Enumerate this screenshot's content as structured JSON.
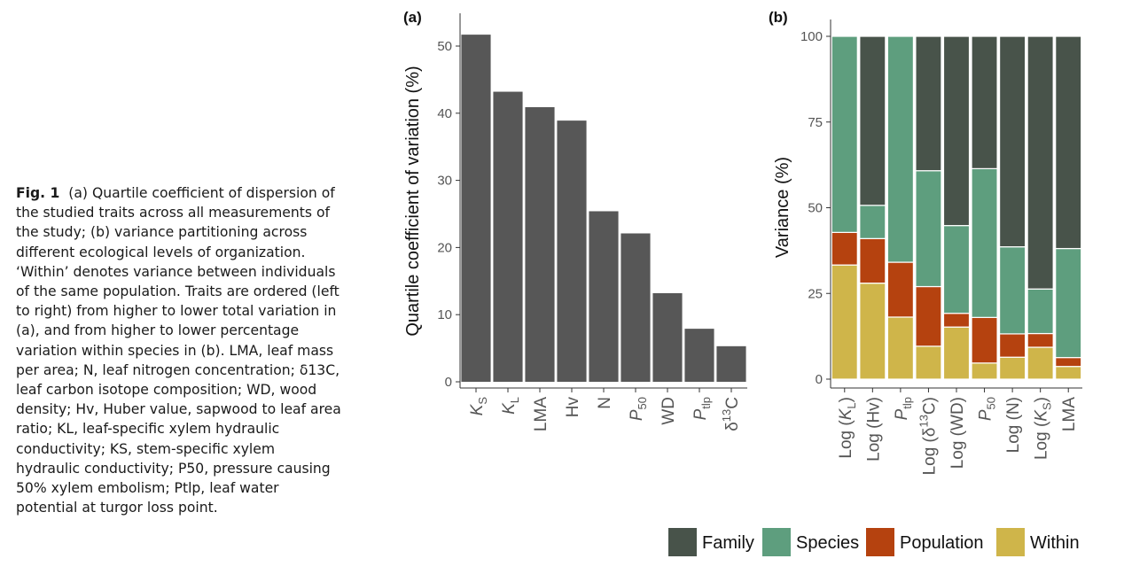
{
  "caption": {
    "label": "Fig. 1",
    "text": "(a) Quartile coefficient of dispersion of the studied traits across all measurements of the study; (b) variance partitioning across different ecological levels of organization. ‘Within’ denotes variance between individuals of the same population. Traits are ordered (left to right) from higher to lower total variation in (a), and from higher to lower percentage variation within species in (b). LMA, leaf mass per area; N, leaf nitrogen concentration; δ13C, leaf carbon isotope composition; WD, wood density; Hv, Huber value, sapwood to leaf area ratio; KL, leaf-specific xylem hydraulic conductivity; KS, stem-specific xylem hydraulic conductivity; P50, pressure causing 50% xylem embolism; Ptlp, leaf water potential at turgor loss point."
  },
  "chart_data": [
    {
      "type": "bar",
      "panel_label": "(a)",
      "ylabel": "Quartile coefficient of variation (%)",
      "ylim": [
        0,
        55
      ],
      "yticks": [
        0,
        10,
        20,
        30,
        40,
        50
      ],
      "categories": [
        "KS",
        "KL",
        "LMA",
        "Hv",
        "N",
        "P50",
        "WD",
        "Ptlp",
        "δ13C"
      ],
      "values": [
        51.7,
        43.2,
        40.9,
        38.9,
        25.4,
        22.1,
        13.2,
        7.9,
        5.3
      ],
      "bar_color": "#575757",
      "grid": false
    },
    {
      "type": "bar",
      "stacked": true,
      "panel_label": "(b)",
      "ylabel": "Variance (%)",
      "ylim": [
        0,
        100
      ],
      "yticks": [
        0,
        25,
        50,
        75,
        100
      ],
      "categories": [
        "Log (KL)",
        "Log (Hv)",
        "Ptlp",
        "Log (δ13C)",
        "Log (WD)",
        "P50",
        "Log (N)",
        "Log (KS)",
        "LMA"
      ],
      "series": [
        {
          "name": "Within",
          "color": "#cfb54a",
          "values": [
            33.3,
            28.0,
            18.1,
            9.6,
            15.2,
            4.7,
            6.4,
            9.3,
            3.7
          ]
        },
        {
          "name": "Population",
          "color": "#b5420f",
          "values": [
            9.5,
            13.0,
            16.0,
            17.4,
            4.0,
            13.3,
            6.8,
            4.0,
            2.6
          ]
        },
        {
          "name": "Species",
          "color": "#5e9e7e",
          "values": [
            57.2,
            9.7,
            65.9,
            33.8,
            25.6,
            43.4,
            25.4,
            13.0,
            31.8
          ]
        },
        {
          "name": "Family",
          "color": "#48534a",
          "values": [
            0.0,
            49.3,
            0.0,
            39.2,
            55.2,
            38.6,
            61.4,
            73.7,
            61.9
          ]
        }
      ],
      "legend": {
        "placement": "bottom",
        "order": [
          "Family",
          "Species",
          "Population",
          "Within"
        ]
      },
      "grid": false
    }
  ]
}
